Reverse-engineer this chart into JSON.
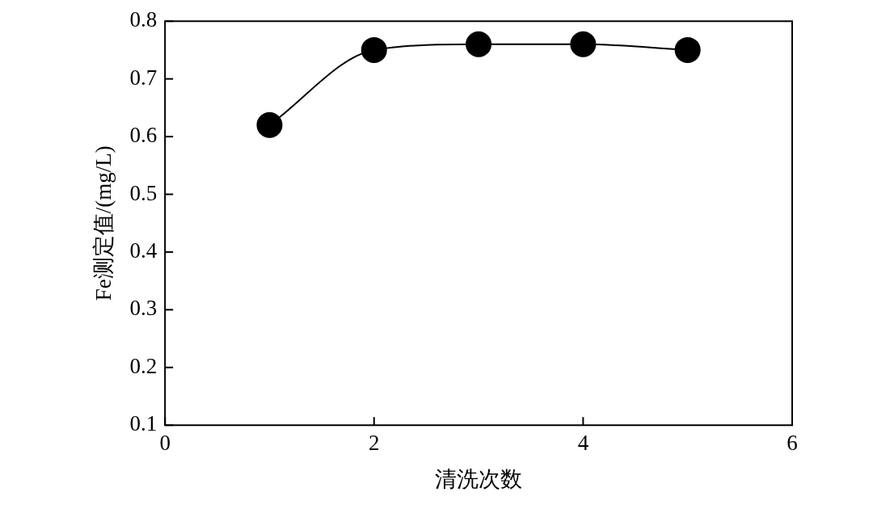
{
  "chart_data": {
    "type": "line",
    "xlabel": "清洗次数",
    "ylabel": "Fe测定值/(mg/L)",
    "x": [
      1,
      2,
      3,
      4,
      5
    ],
    "series": [
      {
        "color": "#000000",
        "values": [
          0.62,
          0.75,
          0.76,
          0.76,
          0.75
        ]
      }
    ],
    "xlim": [
      0,
      6
    ],
    "xticks": [
      0,
      2,
      4,
      6
    ],
    "ylim": [
      0.1,
      0.8
    ],
    "yticks": [
      0.1,
      0.2,
      0.3,
      0.4,
      0.5,
      0.6,
      0.7,
      0.8
    ],
    "grid": false,
    "legend": false,
    "marker": "circle",
    "line_style": "solid"
  }
}
